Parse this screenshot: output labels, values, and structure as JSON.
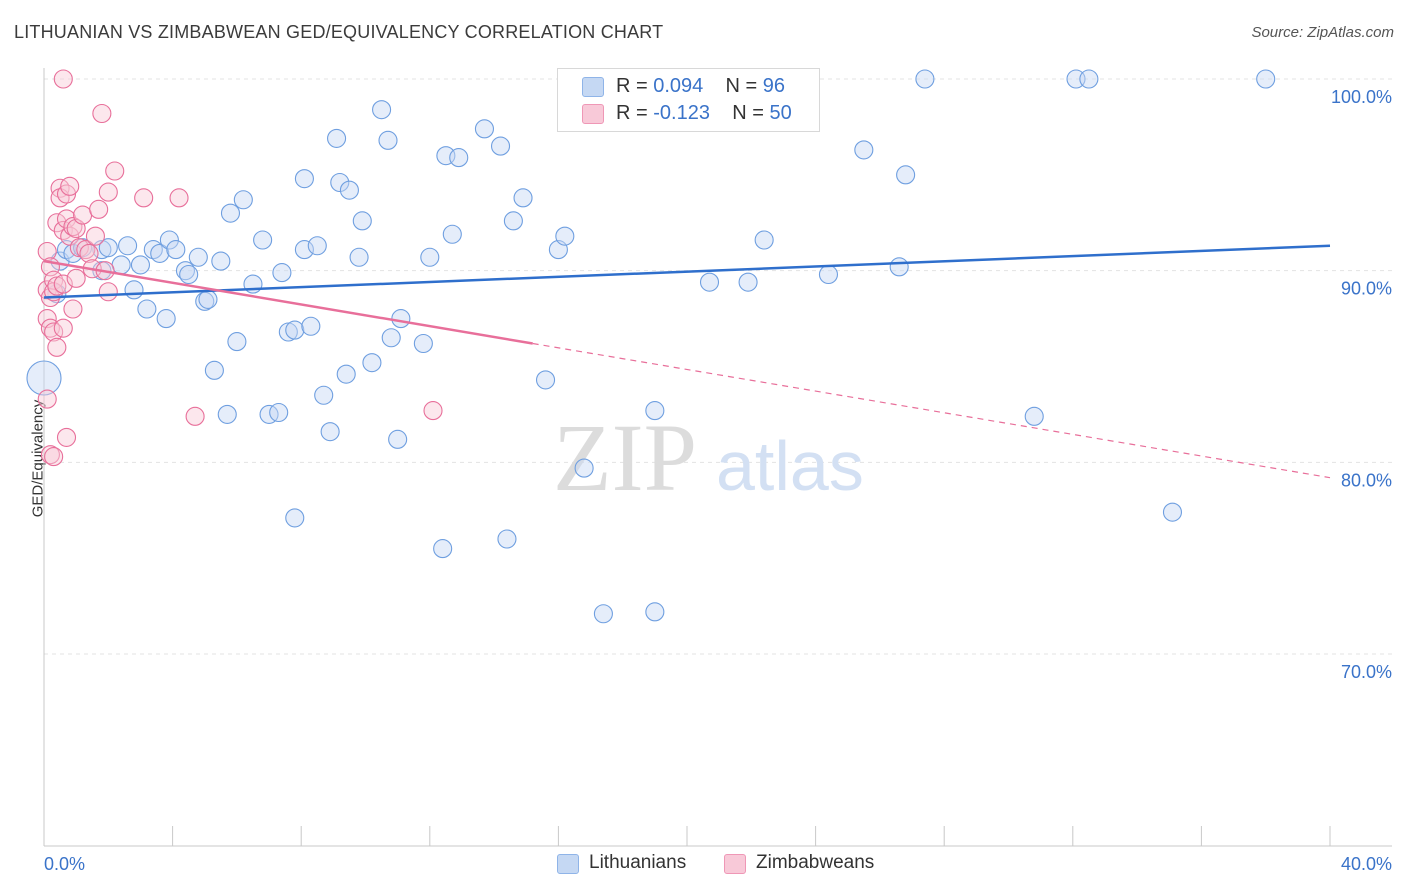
{
  "header": {
    "title": "LITHUANIAN VS ZIMBABWEAN GED/EQUIVALENCY CORRELATION CHART",
    "source": "Source: ZipAtlas.com"
  },
  "legend": {
    "r_label": "R =",
    "n_label": "N =",
    "items": [
      {
        "name": "Lithuanians",
        "r": "0.094",
        "n": "96",
        "color": "#8fb4e8",
        "fill": "#c5d8f3"
      },
      {
        "name": "Zimbabweans",
        "r": "-0.123",
        "n": "50",
        "color": "#ef97b6",
        "fill": "#f8c9d8"
      }
    ]
  },
  "watermark": {
    "zip": "ZIP",
    "atlas": "atlas"
  },
  "chart_data": {
    "type": "scatter",
    "title": "LITHUANIAN VS ZIMBABWEAN GED/EQUIVALENCY CORRELATION CHART",
    "ylabel": "GED/Equivalency",
    "xlabel": "",
    "xlim": [
      0.0,
      40.0
    ],
    "ylim": [
      60.0,
      100.0
    ],
    "x_tick_labels": [
      "0.0%",
      "40.0%"
    ],
    "y_tick_labels": [
      "100.0%",
      "90.0%",
      "80.0%",
      "70.0%"
    ],
    "y_ticks": [
      100,
      90,
      80,
      70
    ],
    "grid": true,
    "series": [
      {
        "name": "Lithuanians",
        "color": "#6f9fe0",
        "trend": {
          "x": [
            0.0,
            40.0
          ],
          "y": [
            88.6,
            91.3
          ],
          "style": "solid"
        },
        "points": [
          [
            0.0,
            84.4,
            "large"
          ],
          [
            0.4,
            88.8
          ],
          [
            0.5,
            90.5
          ],
          [
            0.7,
            91.1
          ],
          [
            0.9,
            90.9
          ],
          [
            1.2,
            91.2
          ],
          [
            1.8,
            91.1
          ],
          [
            1.8,
            90.0
          ],
          [
            2.0,
            91.2
          ],
          [
            2.4,
            90.3
          ],
          [
            2.6,
            91.3
          ],
          [
            2.8,
            89.0
          ],
          [
            3.0,
            90.3
          ],
          [
            3.2,
            88.0
          ],
          [
            3.4,
            91.1
          ],
          [
            3.6,
            90.9
          ],
          [
            3.8,
            87.5
          ],
          [
            3.9,
            91.6
          ],
          [
            4.1,
            91.1
          ],
          [
            4.4,
            90.0
          ],
          [
            4.5,
            89.8
          ],
          [
            4.8,
            90.7
          ],
          [
            5.0,
            88.4
          ],
          [
            5.1,
            88.5
          ],
          [
            5.3,
            84.8
          ],
          [
            5.5,
            90.5
          ],
          [
            5.7,
            82.5
          ],
          [
            5.8,
            93.0
          ],
          [
            6.0,
            86.3
          ],
          [
            6.2,
            93.7
          ],
          [
            6.5,
            89.3
          ],
          [
            6.8,
            91.6
          ],
          [
            7.0,
            82.5
          ],
          [
            7.3,
            82.6
          ],
          [
            7.4,
            89.9
          ],
          [
            7.6,
            86.8
          ],
          [
            7.8,
            86.9
          ],
          [
            7.8,
            77.1
          ],
          [
            8.1,
            94.8
          ],
          [
            8.1,
            91.1
          ],
          [
            8.3,
            87.1
          ],
          [
            8.5,
            91.3
          ],
          [
            8.7,
            83.5
          ],
          [
            8.9,
            81.6
          ],
          [
            9.1,
            96.9
          ],
          [
            9.2,
            94.6
          ],
          [
            9.4,
            84.6
          ],
          [
            9.5,
            94.2
          ],
          [
            9.8,
            90.7
          ],
          [
            9.9,
            92.6
          ],
          [
            10.2,
            85.2
          ],
          [
            10.5,
            98.4
          ],
          [
            10.7,
            96.8
          ],
          [
            10.8,
            86.5
          ],
          [
            11.0,
            81.2
          ],
          [
            11.1,
            87.5
          ],
          [
            11.8,
            86.2
          ],
          [
            12.0,
            90.7
          ],
          [
            12.4,
            75.5
          ],
          [
            12.5,
            96.0
          ],
          [
            12.7,
            91.9
          ],
          [
            12.9,
            95.9
          ],
          [
            13.7,
            97.4
          ],
          [
            14.2,
            96.5
          ],
          [
            14.4,
            76.0
          ],
          [
            14.6,
            92.6
          ],
          [
            14.9,
            93.8
          ],
          [
            15.6,
            84.3
          ],
          [
            16.0,
            91.1
          ],
          [
            16.2,
            91.8
          ],
          [
            16.8,
            79.7
          ],
          [
            17.4,
            72.1
          ],
          [
            17.7,
            100.0
          ],
          [
            19.0,
            72.2
          ],
          [
            19.0,
            82.7
          ],
          [
            20.7,
            89.4
          ],
          [
            21.6,
            98.0
          ],
          [
            21.9,
            89.4
          ],
          [
            22.2,
            100.0
          ],
          [
            22.4,
            91.6
          ],
          [
            23.6,
            100.0
          ],
          [
            24.4,
            89.8
          ],
          [
            25.5,
            96.3
          ],
          [
            26.6,
            90.2
          ],
          [
            26.8,
            95.0
          ],
          [
            27.4,
            100.0
          ],
          [
            30.8,
            82.4
          ],
          [
            32.1,
            100.0
          ],
          [
            32.5,
            100.0
          ],
          [
            35.1,
            77.4
          ],
          [
            38.0,
            100.0
          ]
        ]
      },
      {
        "name": "Zimbabweans",
        "color": "#e86f9a",
        "trend": {
          "x": [
            0.0,
            15.2,
            40.0
          ],
          "y": [
            90.5,
            86.2,
            79.2
          ],
          "style": "solid-then-dashed"
        },
        "points": [
          [
            0.1,
            91.0
          ],
          [
            0.1,
            89.0
          ],
          [
            0.1,
            87.5
          ],
          [
            0.1,
            83.3
          ],
          [
            0.2,
            90.2
          ],
          [
            0.2,
            88.6
          ],
          [
            0.2,
            87.0
          ],
          [
            0.2,
            80.4
          ],
          [
            0.3,
            89.5
          ],
          [
            0.3,
            88.9
          ],
          [
            0.3,
            86.8
          ],
          [
            0.3,
            80.3
          ],
          [
            0.4,
            92.5
          ],
          [
            0.4,
            89.2
          ],
          [
            0.4,
            86.0
          ],
          [
            0.5,
            94.3
          ],
          [
            0.5,
            93.8
          ],
          [
            0.6,
            100.0
          ],
          [
            0.6,
            92.1
          ],
          [
            0.6,
            89.3
          ],
          [
            0.6,
            87.0
          ],
          [
            0.7,
            94.0
          ],
          [
            0.7,
            92.7
          ],
          [
            0.7,
            81.3
          ],
          [
            0.8,
            94.4
          ],
          [
            0.8,
            91.8
          ],
          [
            0.9,
            92.3
          ],
          [
            0.9,
            88.0
          ],
          [
            1.0,
            92.2
          ],
          [
            1.0,
            89.6
          ],
          [
            1.1,
            91.2
          ],
          [
            1.2,
            92.9
          ],
          [
            1.3,
            91.1
          ],
          [
            1.4,
            90.9
          ],
          [
            1.5,
            90.1
          ],
          [
            1.6,
            91.8
          ],
          [
            1.7,
            93.2
          ],
          [
            1.8,
            98.2
          ],
          [
            1.9,
            90.0
          ],
          [
            2.0,
            88.9
          ],
          [
            2.0,
            94.1
          ],
          [
            2.2,
            95.2
          ],
          [
            3.1,
            93.8
          ],
          [
            4.2,
            93.8
          ],
          [
            4.7,
            82.4
          ],
          [
            12.1,
            82.7
          ]
        ]
      }
    ]
  }
}
